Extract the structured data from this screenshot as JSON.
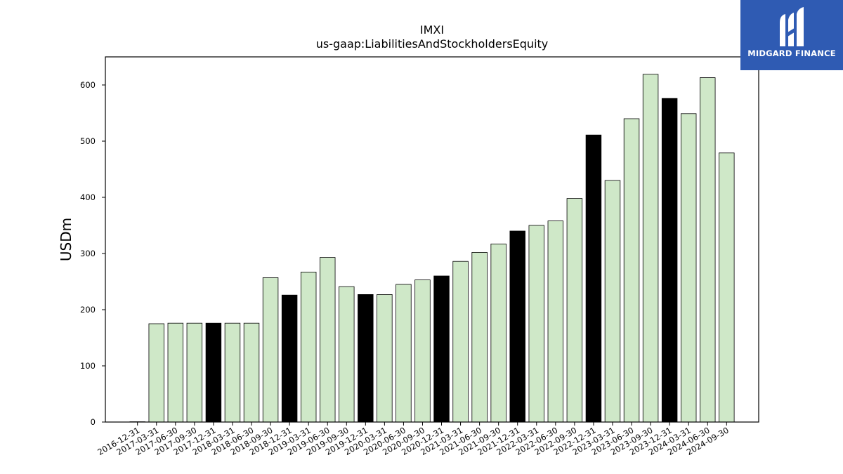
{
  "chart_data": {
    "type": "bar",
    "title": "IMXI",
    "subtitle": "us-gaap:LiabilitiesAndStockholdersEquity",
    "xlabel": "",
    "ylabel": "USDm",
    "ylim": [
      0,
      650
    ],
    "yticks": [
      0,
      100,
      200,
      300,
      400,
      500,
      600
    ],
    "grid": false,
    "categories": [
      "2016-12-31",
      "2017-03-31",
      "2017-06-30",
      "2017-09-30",
      "2017-12-31",
      "2018-03-31",
      "2018-06-30",
      "2018-09-30",
      "2018-12-31",
      "2019-03-31",
      "2019-06-30",
      "2019-09-30",
      "2019-12-31",
      "2020-03-31",
      "2020-06-30",
      "2020-09-30",
      "2020-12-31",
      "2021-03-31",
      "2021-06-30",
      "2021-09-30",
      "2021-12-31",
      "2022-03-31",
      "2022-06-30",
      "2022-09-30",
      "2022-12-31",
      "2023-03-31",
      "2023-06-30",
      "2023-09-30",
      "2023-12-31",
      "2024-03-31",
      "2024-06-30",
      "2024-09-30"
    ],
    "values": [
      0.5,
      175,
      176,
      176,
      176,
      176,
      176,
      257,
      226,
      267,
      293,
      241,
      227,
      227,
      245,
      253,
      260,
      286,
      302,
      317,
      340,
      350,
      358,
      398,
      511,
      430,
      540,
      619,
      576,
      549,
      613,
      479
    ],
    "year_end_colors": {
      "quarter": "#cfe8c8",
      "year_end": "#000000"
    }
  },
  "logo": {
    "text": "MIDGARD FINANCE",
    "background": "#2f5bb3"
  }
}
